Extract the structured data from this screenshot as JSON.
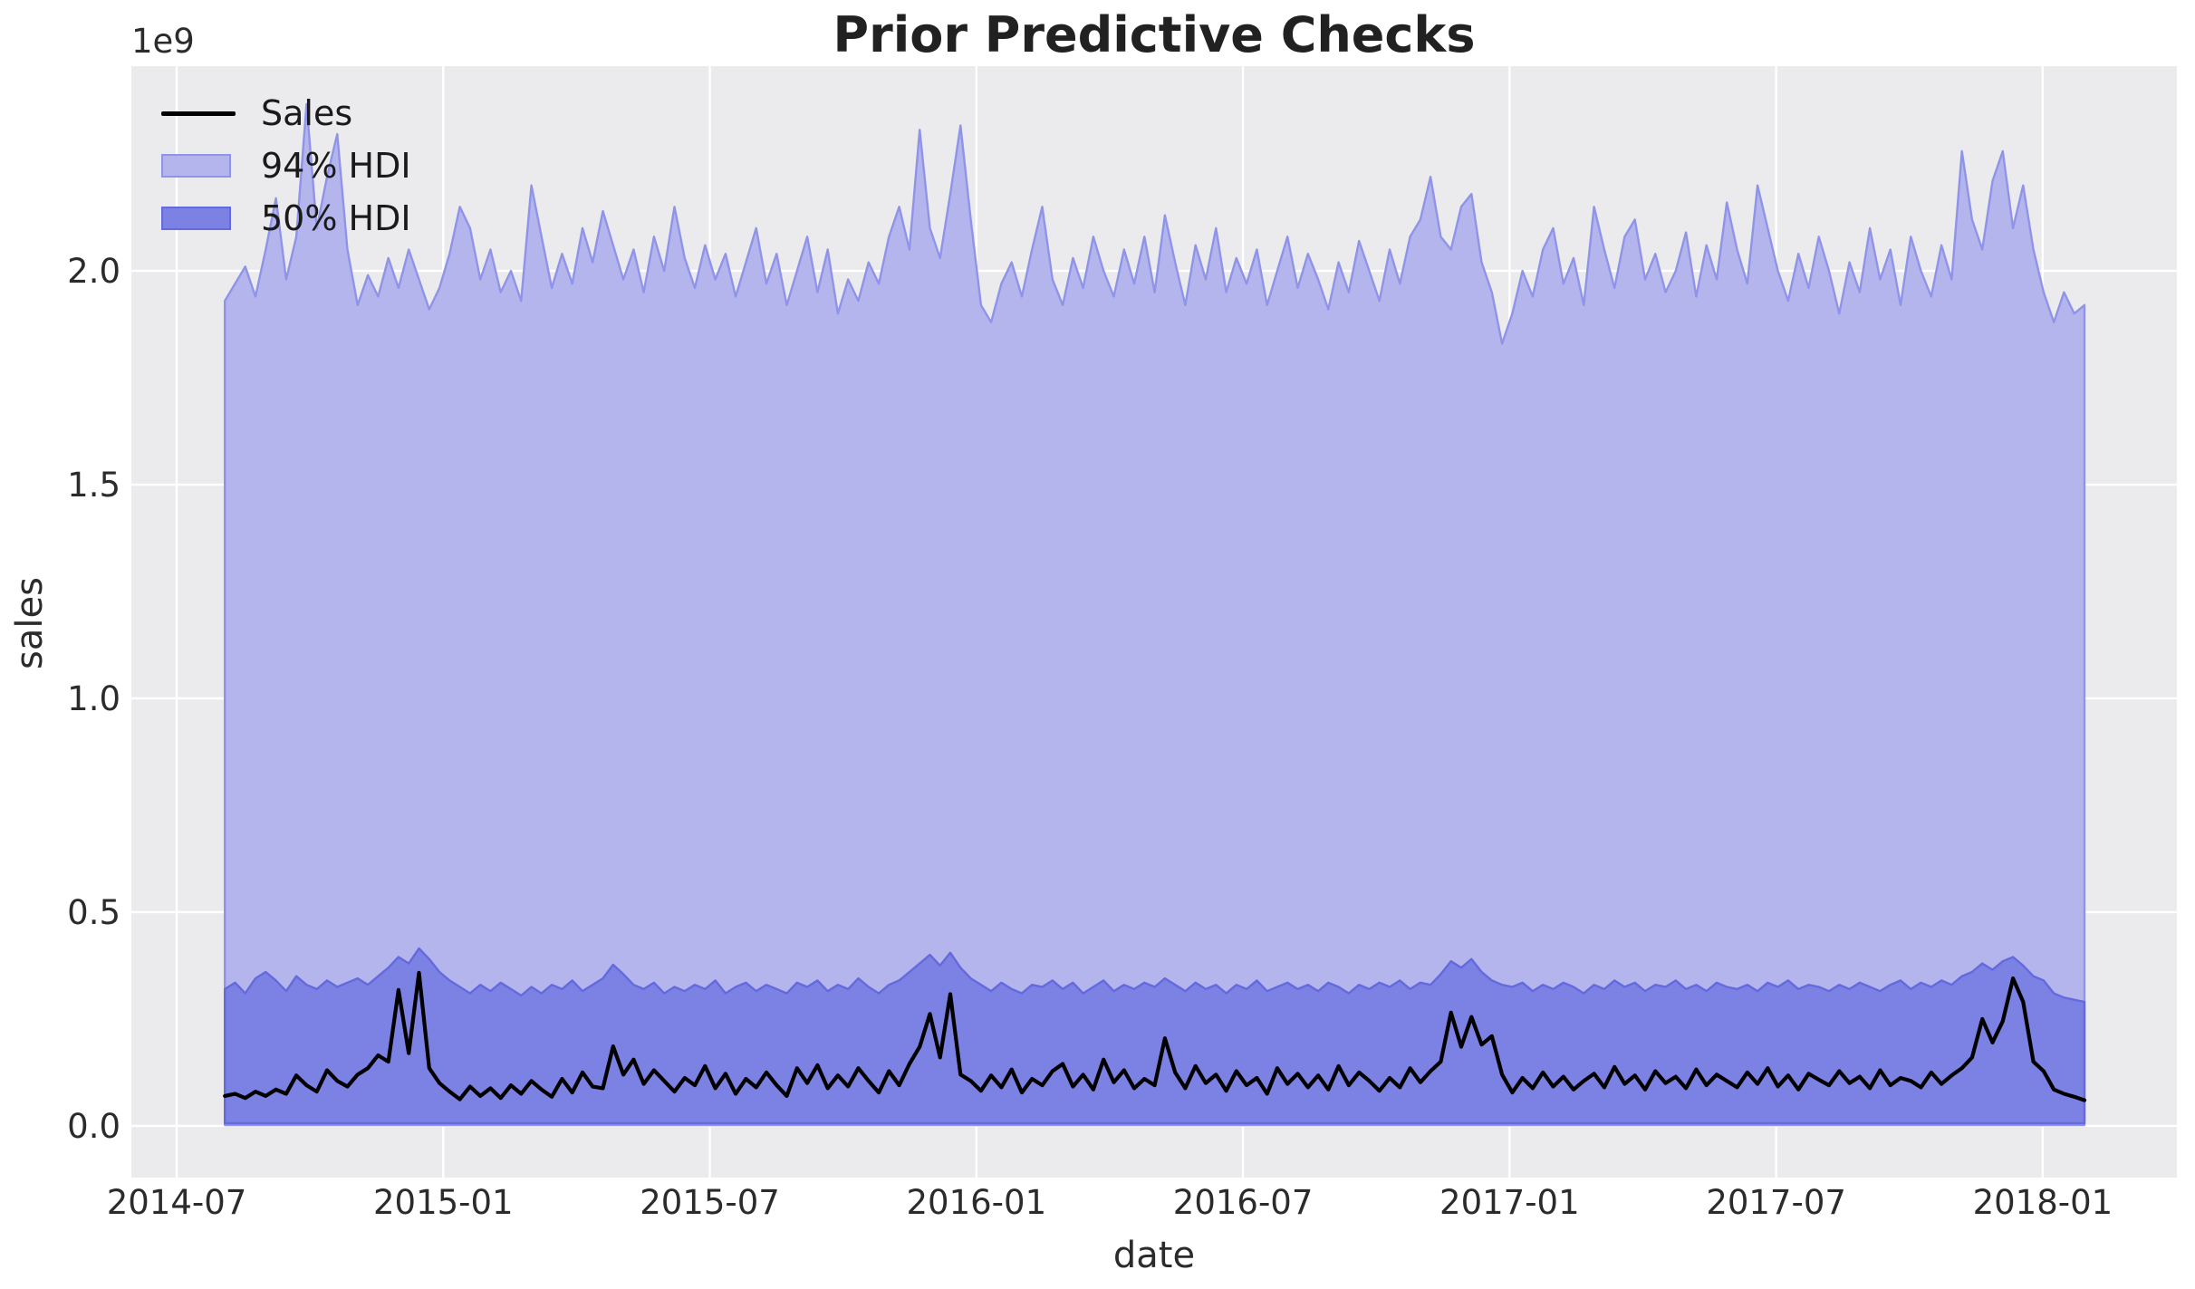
{
  "title": "Prior Predictive Checks",
  "axis": {
    "xlabel": "date",
    "ylabel": "sales",
    "offset_text": "1e9",
    "x_ticks": [
      {
        "label": "2014-07",
        "month": 0
      },
      {
        "label": "2015-01",
        "month": 6
      },
      {
        "label": "2015-07",
        "month": 12
      },
      {
        "label": "2016-01",
        "month": 18
      },
      {
        "label": "2016-07",
        "month": 24
      },
      {
        "label": "2017-01",
        "month": 30
      },
      {
        "label": "2017-07",
        "month": 36
      },
      {
        "label": "2018-01",
        "month": 42
      }
    ],
    "y_ticks": [
      {
        "label": "0.0",
        "value": 0.0
      },
      {
        "label": "0.5",
        "value": 0.5
      },
      {
        "label": "1.0",
        "value": 1.0
      },
      {
        "label": "1.5",
        "value": 1.5
      },
      {
        "label": "2.0",
        "value": 2.0
      }
    ]
  },
  "legend": [
    {
      "label": "Sales",
      "kind": "line",
      "color": "#000000"
    },
    {
      "label": "94% HDI",
      "kind": "patch",
      "fill": "#b3b5ec",
      "edge": "#8f94e9"
    },
    {
      "label": "50% HDI",
      "kind": "patch",
      "fill": "#7c81e4",
      "edge": "#646add"
    }
  ],
  "colors": {
    "plot_background": "#ebebed",
    "figure_background": "#ffffff",
    "gridline": "#ffffff",
    "band_94_fill": "#b3b5ec",
    "band_94_edge": "#8f94e9",
    "band_50_fill": "#7c81e4",
    "band_50_edge": "#646add",
    "sales_line": "#000000",
    "tick_text": "#2b2b2b",
    "title_text": "#212121"
  },
  "chart_data": {
    "type": "area",
    "title": "Prior Predictive Checks",
    "xlabel": "date",
    "ylabel": "sales",
    "y_unit_scale": "1e9",
    "x_unit": "months since 2014-07 (weekly points, ~2014-08 to ~2018-01)",
    "xlim": [
      -1.02,
      45.02
    ],
    "ylim": [
      -0.121,
      2.479
    ],
    "grid": true,
    "legend_position": "upper left",
    "x_start_month": 1.084,
    "x_step_month": 0.22998,
    "n_points": 183,
    "series": [
      {
        "name": "94% HDI",
        "kind": "band",
        "fill": "#b3b5ec",
        "edge": "#8f94e9",
        "lower": 0.002,
        "upper": [
          1.93,
          1.97,
          2.01,
          1.94,
          2.05,
          2.17,
          1.98,
          2.08,
          2.39,
          2.1,
          2.22,
          2.32,
          2.05,
          1.92,
          1.99,
          1.94,
          2.03,
          1.96,
          2.05,
          1.98,
          1.91,
          1.96,
          2.04,
          2.15,
          2.1,
          1.98,
          2.05,
          1.95,
          2.0,
          1.93,
          2.2,
          2.08,
          1.96,
          2.04,
          1.97,
          2.1,
          2.02,
          2.14,
          2.06,
          1.98,
          2.05,
          1.95,
          2.08,
          2.0,
          2.15,
          2.03,
          1.96,
          2.06,
          1.98,
          2.04,
          1.94,
          2.02,
          2.1,
          1.97,
          2.04,
          1.92,
          2.0,
          2.08,
          1.95,
          2.05,
          1.9,
          1.98,
          1.93,
          2.02,
          1.97,
          2.08,
          2.15,
          2.05,
          2.33,
          2.1,
          2.03,
          2.18,
          2.34,
          2.12,
          1.92,
          1.88,
          1.97,
          2.02,
          1.94,
          2.05,
          2.15,
          1.98,
          1.92,
          2.03,
          1.96,
          2.08,
          2.0,
          1.94,
          2.05,
          1.97,
          2.08,
          1.95,
          2.13,
          2.02,
          1.92,
          2.06,
          1.98,
          2.1,
          1.95,
          2.03,
          1.97,
          2.05,
          1.92,
          2.0,
          2.08,
          1.96,
          2.04,
          1.98,
          1.91,
          2.02,
          1.95,
          2.07,
          2.0,
          1.93,
          2.05,
          1.97,
          2.08,
          2.12,
          2.22,
          2.08,
          2.05,
          2.15,
          2.18,
          2.02,
          1.95,
          1.83,
          1.9,
          2.0,
          1.94,
          2.05,
          2.1,
          1.97,
          2.03,
          1.92,
          2.15,
          2.05,
          1.96,
          2.08,
          2.12,
          1.98,
          2.04,
          1.95,
          2.0,
          2.09,
          1.94,
          2.06,
          1.98,
          2.16,
          2.05,
          1.97,
          2.2,
          2.1,
          2.0,
          1.93,
          2.04,
          1.96,
          2.08,
          2.0,
          1.9,
          2.02,
          1.95,
          2.1,
          1.98,
          2.05,
          1.92,
          2.08,
          2.0,
          1.94,
          2.06,
          1.98,
          2.28,
          2.12,
          2.05,
          2.21,
          2.28,
          2.1,
          2.2,
          2.05,
          1.95,
          1.88,
          1.95,
          1.9,
          1.92
        ]
      },
      {
        "name": "50% HDI",
        "kind": "band",
        "fill": "#7c81e4",
        "edge": "#646add",
        "lower": 0.006,
        "upper": [
          0.32,
          0.335,
          0.31,
          0.345,
          0.36,
          0.34,
          0.315,
          0.35,
          0.33,
          0.32,
          0.34,
          0.325,
          0.335,
          0.345,
          0.33,
          0.35,
          0.37,
          0.395,
          0.38,
          0.415,
          0.39,
          0.36,
          0.34,
          0.325,
          0.31,
          0.33,
          0.315,
          0.335,
          0.32,
          0.305,
          0.325,
          0.31,
          0.33,
          0.32,
          0.34,
          0.315,
          0.33,
          0.345,
          0.377,
          0.355,
          0.33,
          0.32,
          0.335,
          0.31,
          0.325,
          0.315,
          0.33,
          0.32,
          0.34,
          0.31,
          0.325,
          0.335,
          0.315,
          0.33,
          0.32,
          0.31,
          0.335,
          0.325,
          0.34,
          0.315,
          0.33,
          0.32,
          0.345,
          0.325,
          0.31,
          0.33,
          0.34,
          0.36,
          0.38,
          0.4,
          0.375,
          0.405,
          0.37,
          0.345,
          0.33,
          0.315,
          0.335,
          0.32,
          0.31,
          0.33,
          0.325,
          0.34,
          0.32,
          0.335,
          0.31,
          0.325,
          0.34,
          0.315,
          0.33,
          0.32,
          0.335,
          0.325,
          0.345,
          0.33,
          0.315,
          0.335,
          0.32,
          0.33,
          0.31,
          0.33,
          0.32,
          0.34,
          0.315,
          0.325,
          0.335,
          0.32,
          0.33,
          0.315,
          0.335,
          0.325,
          0.31,
          0.33,
          0.32,
          0.335,
          0.325,
          0.34,
          0.32,
          0.335,
          0.33,
          0.355,
          0.385,
          0.37,
          0.39,
          0.36,
          0.34,
          0.33,
          0.325,
          0.335,
          0.315,
          0.33,
          0.32,
          0.335,
          0.325,
          0.31,
          0.33,
          0.32,
          0.34,
          0.325,
          0.335,
          0.315,
          0.33,
          0.325,
          0.34,
          0.32,
          0.33,
          0.315,
          0.335,
          0.325,
          0.32,
          0.33,
          0.315,
          0.335,
          0.325,
          0.34,
          0.32,
          0.33,
          0.325,
          0.315,
          0.33,
          0.32,
          0.335,
          0.325,
          0.315,
          0.33,
          0.34,
          0.32,
          0.335,
          0.325,
          0.34,
          0.33,
          0.35,
          0.36,
          0.38,
          0.365,
          0.385,
          0.395,
          0.375,
          0.35,
          0.34,
          0.31,
          0.3,
          0.295,
          0.29
        ]
      },
      {
        "name": "Sales",
        "kind": "line",
        "color": "#000000",
        "values": [
          0.07,
          0.075,
          0.065,
          0.08,
          0.07,
          0.085,
          0.075,
          0.118,
          0.095,
          0.08,
          0.13,
          0.105,
          0.092,
          0.12,
          0.135,
          0.165,
          0.15,
          0.318,
          0.17,
          0.358,
          0.135,
          0.1,
          0.08,
          0.062,
          0.092,
          0.07,
          0.088,
          0.065,
          0.095,
          0.075,
          0.105,
          0.085,
          0.068,
          0.11,
          0.078,
          0.125,
          0.092,
          0.088,
          0.186,
          0.12,
          0.155,
          0.098,
          0.13,
          0.105,
          0.08,
          0.112,
          0.095,
          0.14,
          0.088,
          0.122,
          0.075,
          0.11,
          0.09,
          0.125,
          0.095,
          0.07,
          0.135,
          0.1,
          0.142,
          0.088,
          0.118,
          0.092,
          0.135,
          0.105,
          0.078,
          0.128,
          0.095,
          0.145,
          0.185,
          0.262,
          0.16,
          0.308,
          0.12,
          0.105,
          0.082,
          0.118,
          0.09,
          0.132,
          0.078,
          0.11,
          0.095,
          0.128,
          0.145,
          0.092,
          0.12,
          0.085,
          0.155,
          0.102,
          0.13,
          0.088,
          0.11,
          0.095,
          0.205,
          0.125,
          0.088,
          0.14,
          0.1,
          0.12,
          0.082,
          0.128,
          0.095,
          0.112,
          0.075,
          0.135,
          0.098,
          0.122,
          0.09,
          0.118,
          0.085,
          0.14,
          0.095,
          0.125,
          0.105,
          0.082,
          0.112,
          0.09,
          0.135,
          0.102,
          0.128,
          0.15,
          0.265,
          0.185,
          0.255,
          0.19,
          0.21,
          0.12,
          0.078,
          0.112,
          0.088,
          0.125,
          0.092,
          0.115,
          0.085,
          0.105,
          0.122,
          0.09,
          0.138,
          0.098,
          0.118,
          0.085,
          0.128,
          0.1,
          0.115,
          0.088,
          0.132,
          0.095,
          0.12,
          0.105,
          0.09,
          0.125,
          0.098,
          0.135,
          0.092,
          0.118,
          0.085,
          0.122,
          0.108,
          0.095,
          0.128,
          0.1,
          0.115,
          0.088,
          0.13,
          0.095,
          0.112,
          0.105,
          0.09,
          0.125,
          0.098,
          0.118,
          0.135,
          0.16,
          0.25,
          0.195,
          0.245,
          0.345,
          0.29,
          0.15,
          0.128,
          0.085,
          0.075,
          0.068,
          0.06
        ]
      }
    ]
  }
}
